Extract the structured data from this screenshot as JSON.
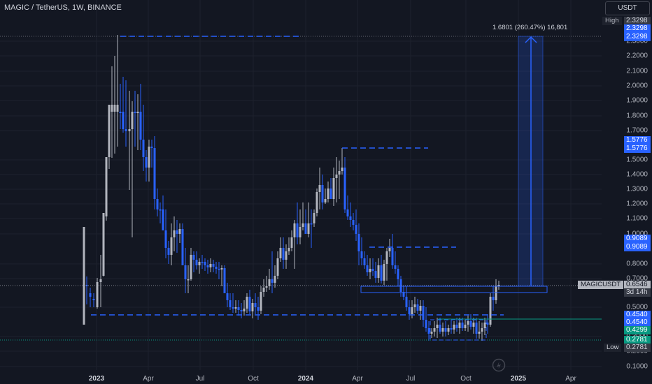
{
  "header": {
    "symbol_title": "MAGIC / TetherUS, 1W, BINANCE",
    "currency_button": "USDT"
  },
  "measure": {
    "label": "1.6801 (260.47%) 16,801"
  },
  "y_axis": {
    "ticks": [
      "2.3000",
      "2.2000",
      "2.1000",
      "2.0000",
      "1.9000",
      "1.8000",
      "1.7000",
      "1.5000",
      "1.4000",
      "1.3000",
      "1.2000",
      "1.1000",
      "1.0000",
      "0.8000",
      "0.7000",
      "0.5000",
      "0.3000",
      "0.2000",
      "0.1000"
    ],
    "high_tag": "High",
    "high_value": "2.3298",
    "measure_top_1": "2.3298",
    "measure_top_2": "2.3298",
    "level_1a": "1.5776",
    "level_1b": "1.5776",
    "level_2a": "0.9089",
    "level_2b": "0.9089",
    "symbol_tag": "MAGICUSDT",
    "last_price": "0.6546",
    "countdown": "3d 14h",
    "level_3a": "0.4540",
    "level_3b": "0.4540",
    "level_4": "0.4299",
    "level_5": "0.2781",
    "low_tag": "Low",
    "low_value": "0.2781"
  },
  "x_axis": {
    "labels": [
      {
        "text": "2023",
        "major": true
      },
      {
        "text": "Apr",
        "major": false
      },
      {
        "text": "Jul",
        "major": false
      },
      {
        "text": "Oct",
        "major": false
      },
      {
        "text": "2024",
        "major": true
      },
      {
        "text": "Apr",
        "major": false
      },
      {
        "text": "Jul",
        "major": false
      },
      {
        "text": "Oct",
        "major": false
      },
      {
        "text": "2025",
        "major": true
      },
      {
        "text": "Apr",
        "major": false
      }
    ]
  },
  "colors": {
    "background": "#131722",
    "bull_candle": "#b2b5be",
    "bear_candle": "#2962ff",
    "accent_blue": "#2962ff",
    "teal": "#089981"
  },
  "icons": [
    "tradingview-logo-icon"
  ]
}
